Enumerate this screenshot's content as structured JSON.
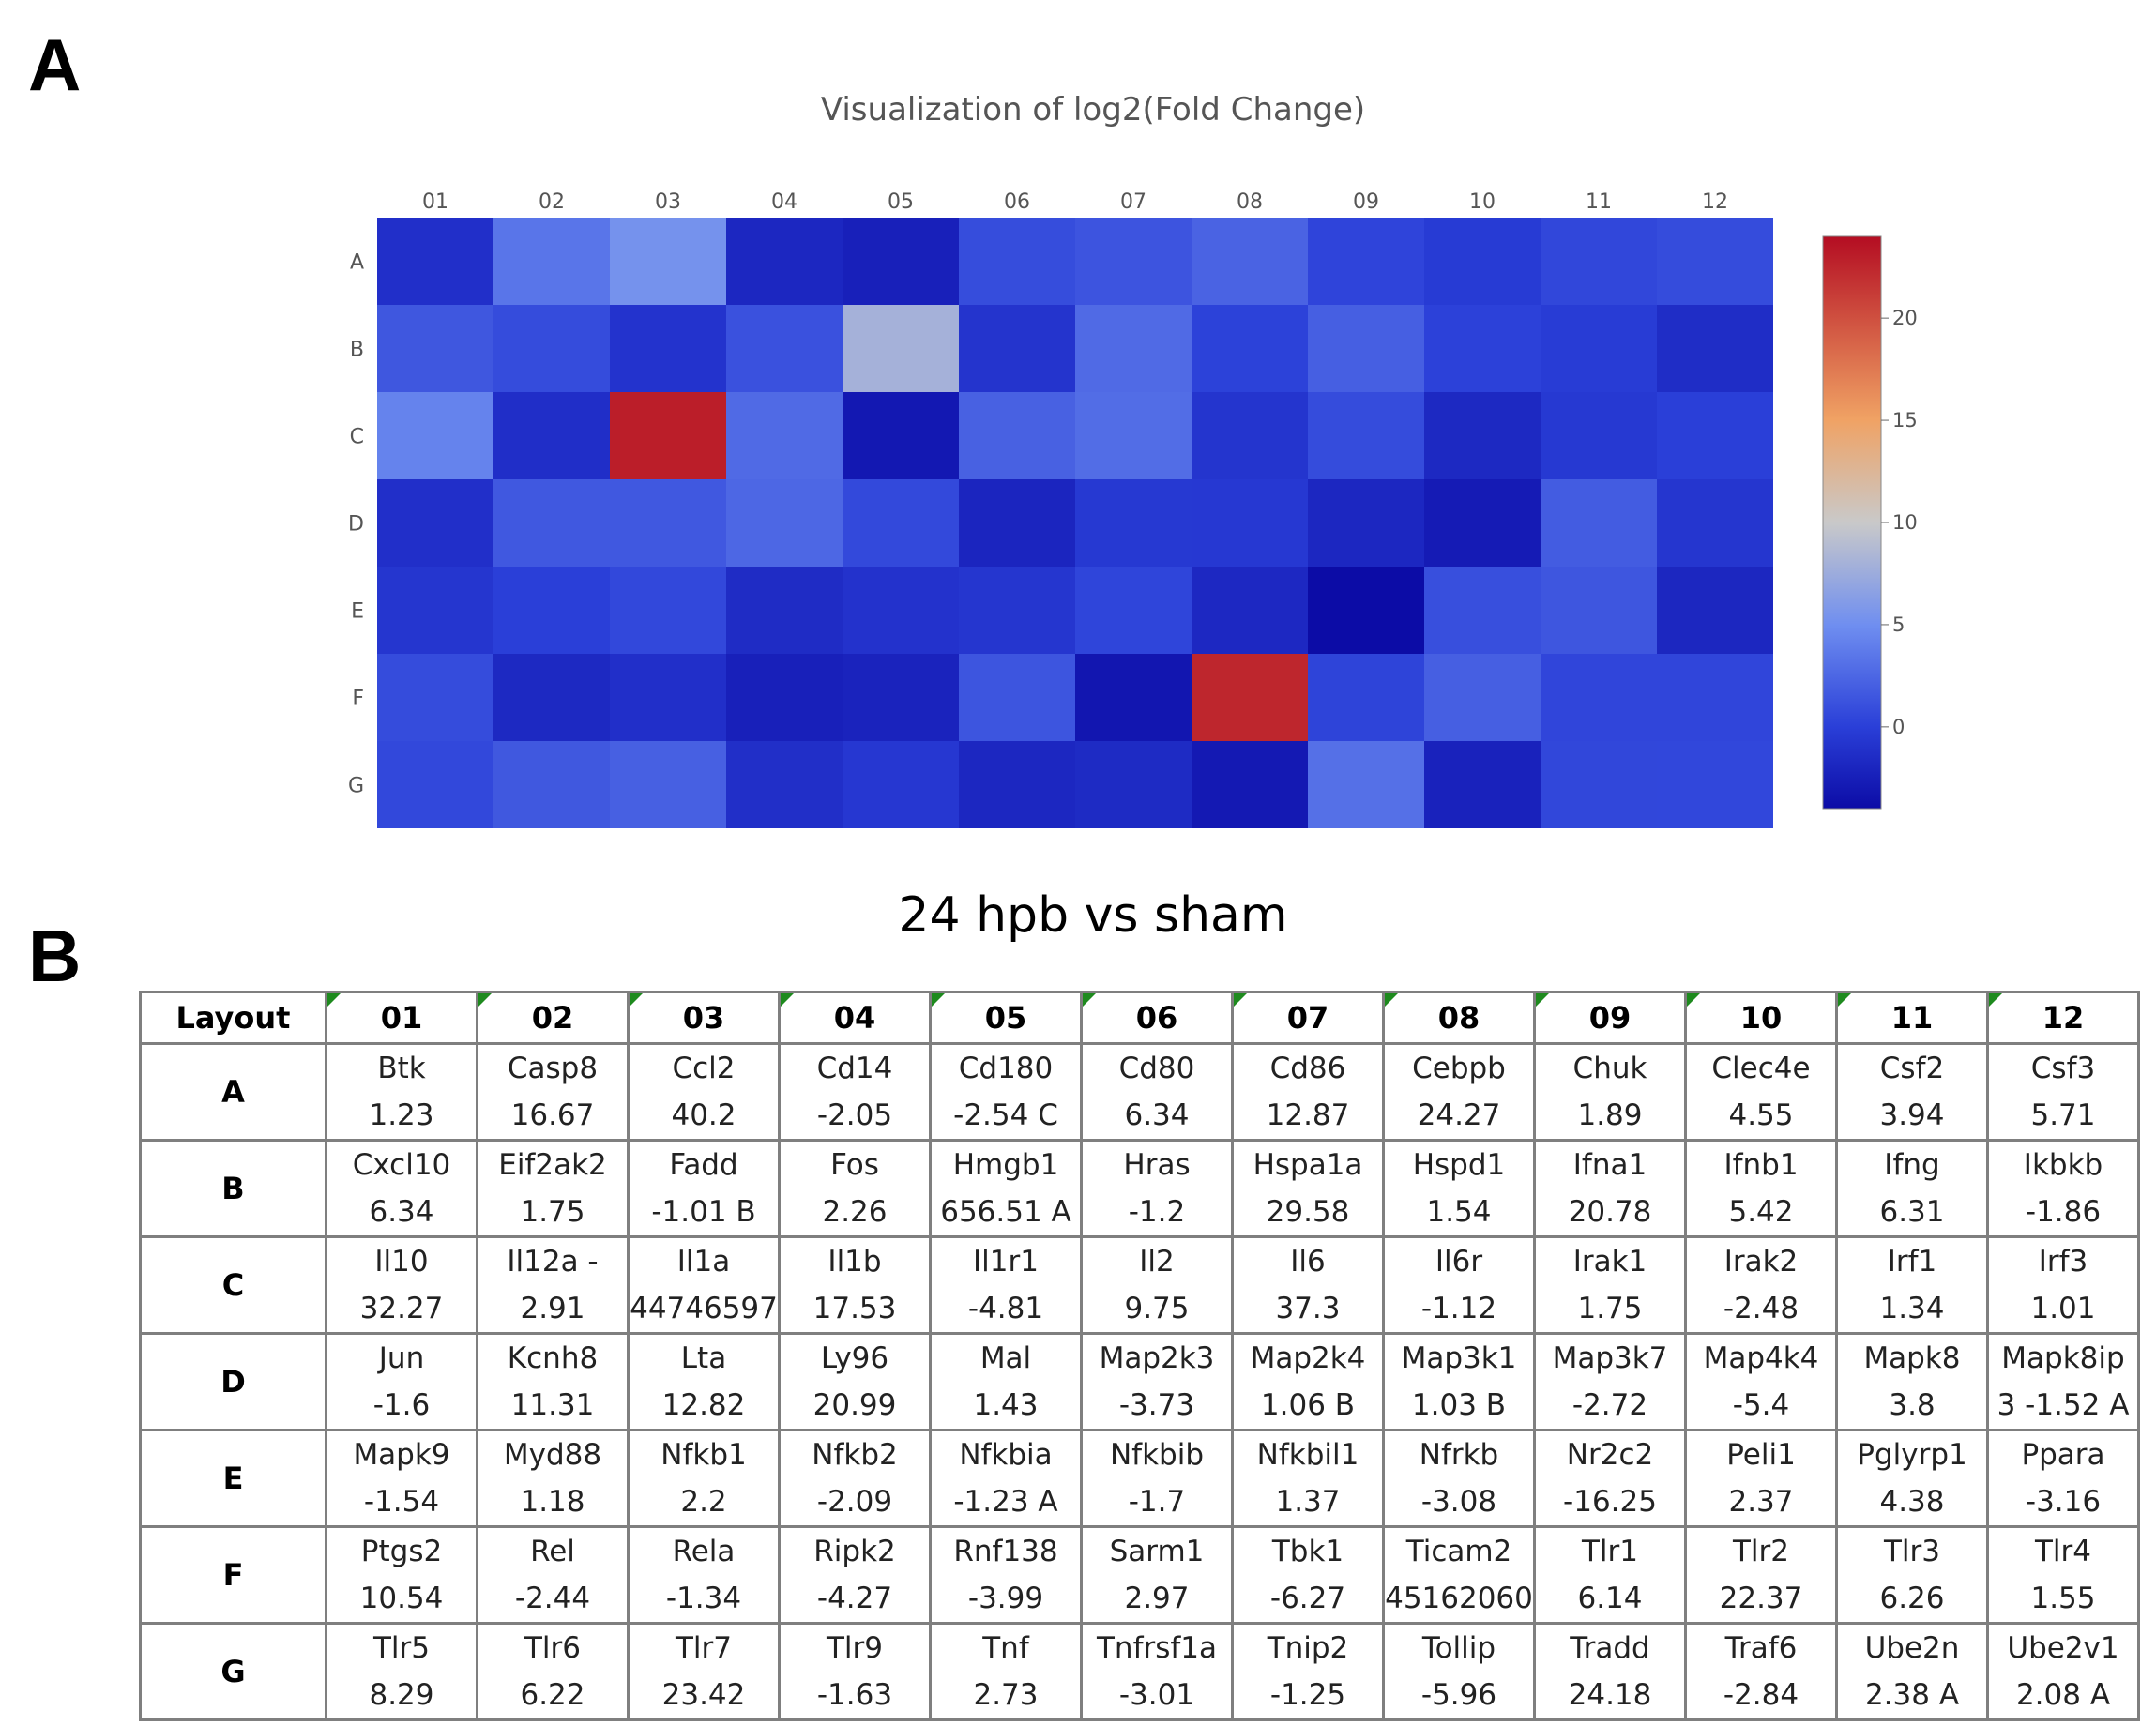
{
  "panels": {
    "a": "A",
    "b": "B"
  },
  "chart_data": {
    "type": "heatmap",
    "title": "Visualization of log2(Fold Change)",
    "columns": [
      "01",
      "02",
      "03",
      "04",
      "05",
      "06",
      "07",
      "08",
      "09",
      "10",
      "11",
      "12"
    ],
    "rows": [
      "A",
      "B",
      "C",
      "D",
      "E",
      "F",
      "G"
    ],
    "values": [
      [
        -1.23,
        3.44,
        5.33,
        -1.86,
        -2.43,
        0.9,
        1.36,
        2.3,
        0.33,
        -0.35,
        0.48,
        0.81
      ],
      [
        1.5,
        0.8,
        -0.91,
        1.17,
        8.0,
        -0.85,
        2.72,
        0.17,
        2.02,
        0.15,
        -0.21,
        -1.45
      ],
      [
        4.31,
        -1.3,
        23.0,
        2.72,
        -3.04,
        2.18,
        2.93,
        -0.79,
        0.8,
        -1.75,
        -0.48,
        0.0
      ],
      [
        -1.22,
        1.6,
        1.6,
        2.5,
        0.64,
        -2.04,
        -0.5,
        -0.51,
        -1.85,
        -2.8,
        1.84,
        -0.7
      ],
      [
        -0.72,
        0.0,
        0.6,
        -1.5,
        -1.0,
        -0.7,
        0.38,
        -1.78,
        -4.02,
        1.0,
        1.46,
        -1.9
      ],
      [
        0.8,
        -1.74,
        -1.23,
        -2.4,
        -2.2,
        1.4,
        -3.2,
        22.5,
        0.3,
        2.0,
        0.4,
        0.4
      ],
      [
        0.6,
        1.56,
        2.09,
        -1.25,
        -0.6,
        -1.87,
        -1.6,
        -2.95,
        3.1,
        -2.25,
        0.5,
        0.53
      ]
    ],
    "colorbar": {
      "min": -4,
      "max": 24,
      "ticks": [
        0,
        5,
        10,
        15,
        20
      ],
      "colors": [
        "#0c0ca6",
        "#6f8ef0",
        "#c9c9c9",
        "#f0a264",
        "#b40d22"
      ]
    }
  },
  "table": {
    "title": "24 hpb vs sham",
    "corner": "Layout",
    "columns": [
      "01",
      "02",
      "03",
      "04",
      "05",
      "06",
      "07",
      "08",
      "09",
      "10",
      "11",
      "12"
    ],
    "rows": [
      {
        "label": "A",
        "cells": [
          {
            "gene": "Btk",
            "value": "1.23"
          },
          {
            "gene": "Casp8",
            "value": "16.67"
          },
          {
            "gene": "Ccl2",
            "value": "40.2"
          },
          {
            "gene": "Cd14",
            "value": "-2.05"
          },
          {
            "gene": "Cd180",
            "value": "-2.54 C"
          },
          {
            "gene": "Cd80",
            "value": "6.34"
          },
          {
            "gene": "Cd86",
            "value": "12.87"
          },
          {
            "gene": "Cebpb",
            "value": "24.27"
          },
          {
            "gene": "Chuk",
            "value": "1.89"
          },
          {
            "gene": "Clec4e",
            "value": "4.55"
          },
          {
            "gene": "Csf2",
            "value": "3.94"
          },
          {
            "gene": "Csf3",
            "value": "5.71"
          }
        ]
      },
      {
        "label": "B",
        "cells": [
          {
            "gene": "Cxcl10",
            "value": "6.34"
          },
          {
            "gene": "Eif2ak2",
            "value": "1.75"
          },
          {
            "gene": "Fadd",
            "value": "-1.01 B"
          },
          {
            "gene": "Fos",
            "value": "2.26"
          },
          {
            "gene": "Hmgb1",
            "value": "656.51 A"
          },
          {
            "gene": "Hras",
            "value": "-1.2"
          },
          {
            "gene": "Hspa1a",
            "value": "29.58"
          },
          {
            "gene": "Hspd1",
            "value": "1.54"
          },
          {
            "gene": "Ifna1",
            "value": "20.78"
          },
          {
            "gene": "Ifnb1",
            "value": "5.42"
          },
          {
            "gene": "Ifng",
            "value": "6.31"
          },
          {
            "gene": "Ikbkb",
            "value": "-1.86"
          }
        ]
      },
      {
        "label": "C",
        "cells": [
          {
            "gene": "Il10",
            "value": "32.27"
          },
          {
            "gene": "Il12a -",
            "value": "2.91"
          },
          {
            "gene": "Il1a",
            "value": "44746597"
          },
          {
            "gene": "Il1b",
            "value": "17.53"
          },
          {
            "gene": "Il1r1",
            "value": "-4.81"
          },
          {
            "gene": "Il2",
            "value": "9.75"
          },
          {
            "gene": "Il6",
            "value": "37.3"
          },
          {
            "gene": "Il6r",
            "value": "-1.12"
          },
          {
            "gene": "Irak1",
            "value": "1.75"
          },
          {
            "gene": "Irak2",
            "value": "-2.48"
          },
          {
            "gene": "Irf1",
            "value": "1.34"
          },
          {
            "gene": "Irf3",
            "value": "1.01"
          }
        ]
      },
      {
        "label": "D",
        "cells": [
          {
            "gene": "Jun",
            "value": "-1.6"
          },
          {
            "gene": "Kcnh8",
            "value": "11.31"
          },
          {
            "gene": "Lta",
            "value": "12.82"
          },
          {
            "gene": "Ly96",
            "value": "20.99"
          },
          {
            "gene": "Mal",
            "value": "1.43"
          },
          {
            "gene": "Map2k3",
            "value": "-3.73"
          },
          {
            "gene": "Map2k4",
            "value": "1.06 B"
          },
          {
            "gene": "Map3k1",
            "value": "1.03 B"
          },
          {
            "gene": "Map3k7",
            "value": "-2.72"
          },
          {
            "gene": "Map4k4",
            "value": "-5.4"
          },
          {
            "gene": "Mapk8",
            "value": "3.8"
          },
          {
            "gene": "Mapk8ip",
            "value": "3 -1.52 A"
          }
        ]
      },
      {
        "label": "E",
        "cells": [
          {
            "gene": "Mapk9",
            "value": "-1.54"
          },
          {
            "gene": "Myd88",
            "value": "1.18"
          },
          {
            "gene": "Nfkb1",
            "value": "2.2"
          },
          {
            "gene": "Nfkb2",
            "value": "-2.09"
          },
          {
            "gene": "Nfkbia",
            "value": "-1.23 A"
          },
          {
            "gene": "Nfkbib",
            "value": "-1.7"
          },
          {
            "gene": "Nfkbil1",
            "value": "1.37"
          },
          {
            "gene": "Nfrkb",
            "value": "-3.08"
          },
          {
            "gene": "Nr2c2",
            "value": "-16.25"
          },
          {
            "gene": "Peli1",
            "value": "2.37"
          },
          {
            "gene": "Pglyrp1",
            "value": "4.38"
          },
          {
            "gene": "Ppara",
            "value": "-3.16"
          }
        ]
      },
      {
        "label": "F",
        "cells": [
          {
            "gene": "Ptgs2",
            "value": "10.54"
          },
          {
            "gene": "Rel",
            "value": "-2.44"
          },
          {
            "gene": "Rela",
            "value": "-1.34"
          },
          {
            "gene": "Ripk2",
            "value": "-4.27"
          },
          {
            "gene": "Rnf138",
            "value": "-3.99"
          },
          {
            "gene": "Sarm1",
            "value": "2.97"
          },
          {
            "gene": "Tbk1",
            "value": "-6.27"
          },
          {
            "gene": "Ticam2",
            "value": "45162060"
          },
          {
            "gene": "Tlr1",
            "value": "6.14"
          },
          {
            "gene": "Tlr2",
            "value": "22.37"
          },
          {
            "gene": "Tlr3",
            "value": "6.26"
          },
          {
            "gene": "Tlr4",
            "value": "1.55"
          }
        ]
      },
      {
        "label": "G",
        "cells": [
          {
            "gene": "Tlr5",
            "value": "8.29"
          },
          {
            "gene": "Tlr6",
            "value": "6.22"
          },
          {
            "gene": "Tlr7",
            "value": "23.42"
          },
          {
            "gene": "Tlr9",
            "value": "-1.63"
          },
          {
            "gene": "Tnf",
            "value": "2.73"
          },
          {
            "gene": "Tnfrsf1a",
            "value": "-3.01"
          },
          {
            "gene": "Tnip2",
            "value": "-1.25"
          },
          {
            "gene": "Tollip",
            "value": "-5.96"
          },
          {
            "gene": "Tradd",
            "value": "24.18"
          },
          {
            "gene": "Traf6",
            "value": "-2.84"
          },
          {
            "gene": "Ube2n",
            "value": "2.38 A"
          },
          {
            "gene": "Ube2v1",
            "value": "2.08 A"
          }
        ]
      }
    ]
  }
}
